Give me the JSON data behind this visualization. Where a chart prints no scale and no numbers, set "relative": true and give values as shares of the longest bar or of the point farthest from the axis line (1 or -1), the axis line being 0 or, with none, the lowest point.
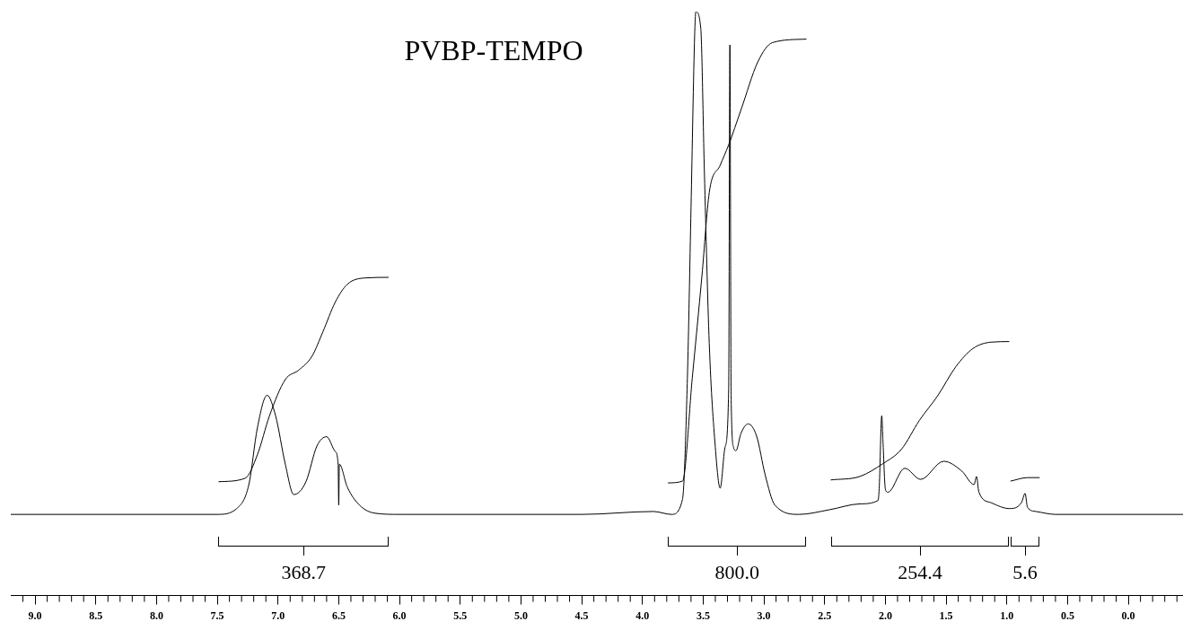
{
  "chart_data": {
    "type": "line",
    "title": "PVBP-TEMPO",
    "relative": true,
    "marker": "none",
    "legend": false,
    "xlim": [
      9.2,
      -0.45
    ],
    "xticks": [
      {
        "value": 9.1,
        "label": null
      },
      {
        "value": 9,
        "label": "9.0"
      },
      {
        "value": 8.9,
        "label": null
      },
      {
        "value": 8.8,
        "label": null
      },
      {
        "value": 8.7,
        "label": null
      },
      {
        "value": 8.6,
        "label": null
      },
      {
        "value": 8.5,
        "label": "8.5"
      },
      {
        "value": 8.4,
        "label": null
      },
      {
        "value": 8.3,
        "label": null
      },
      {
        "value": 8.2,
        "label": null
      },
      {
        "value": 8.1,
        "label": null
      },
      {
        "value": 8,
        "label": "8.0"
      },
      {
        "value": 7.9,
        "label": null
      },
      {
        "value": 7.8,
        "label": null
      },
      {
        "value": 7.7,
        "label": null
      },
      {
        "value": 7.6,
        "label": null
      },
      {
        "value": 7.5,
        "label": "7.5"
      },
      {
        "value": 7.4,
        "label": null
      },
      {
        "value": 7.3,
        "label": null
      },
      {
        "value": 7.2,
        "label": null
      },
      {
        "value": 7.1,
        "label": null
      },
      {
        "value": 7,
        "label": "7.0"
      },
      {
        "value": 6.9,
        "label": null
      },
      {
        "value": 6.8,
        "label": null
      },
      {
        "value": 6.7,
        "label": null
      },
      {
        "value": 6.6,
        "label": null
      },
      {
        "value": 6.5,
        "label": "6.5"
      },
      {
        "value": 6.4,
        "label": null
      },
      {
        "value": 6.3,
        "label": null
      },
      {
        "value": 6.2,
        "label": null
      },
      {
        "value": 6.1,
        "label": null
      },
      {
        "value": 6,
        "label": "6.0"
      },
      {
        "value": 5.9,
        "label": null
      },
      {
        "value": 5.8,
        "label": null
      },
      {
        "value": 5.7,
        "label": null
      },
      {
        "value": 5.6,
        "label": null
      },
      {
        "value": 5.5,
        "label": "5.5"
      },
      {
        "value": 5.4,
        "label": null
      },
      {
        "value": 5.3,
        "label": null
      },
      {
        "value": 5.2,
        "label": null
      },
      {
        "value": 5.1,
        "label": null
      },
      {
        "value": 5,
        "label": "5.0"
      },
      {
        "value": 4.9,
        "label": null
      },
      {
        "value": 4.8,
        "label": null
      },
      {
        "value": 4.7,
        "label": null
      },
      {
        "value": 4.6,
        "label": null
      },
      {
        "value": 4.5,
        "label": "4.5"
      },
      {
        "value": 4.4,
        "label": null
      },
      {
        "value": 4.3,
        "label": null
      },
      {
        "value": 4.2,
        "label": null
      },
      {
        "value": 4.1,
        "label": null
      },
      {
        "value": 4,
        "label": "4.0"
      },
      {
        "value": 3.9,
        "label": null
      },
      {
        "value": 3.8,
        "label": null
      },
      {
        "value": 3.7,
        "label": null
      },
      {
        "value": 3.6,
        "label": null
      },
      {
        "value": 3.5,
        "label": "3.5"
      },
      {
        "value": 3.4,
        "label": null
      },
      {
        "value": 3.3,
        "label": null
      },
      {
        "value": 3.2,
        "label": null
      },
      {
        "value": 3.1,
        "label": null
      },
      {
        "value": 3,
        "label": "3.0"
      },
      {
        "value": 2.9,
        "label": null
      },
      {
        "value": 2.8,
        "label": null
      },
      {
        "value": 2.7,
        "label": null
      },
      {
        "value": 2.6,
        "label": null
      },
      {
        "value": 2.5,
        "label": "2.5"
      },
      {
        "value": 2.4,
        "label": null
      },
      {
        "value": 2.3,
        "label": null
      },
      {
        "value": 2.2,
        "label": null
      },
      {
        "value": 2.1,
        "label": null
      },
      {
        "value": 2,
        "label": "2.0"
      },
      {
        "value": 1.9,
        "label": null
      },
      {
        "value": 1.8,
        "label": null
      },
      {
        "value": 1.7,
        "label": null
      },
      {
        "value": 1.6,
        "label": null
      },
      {
        "value": 1.5,
        "label": "1.5"
      },
      {
        "value": 1.4,
        "label": null
      },
      {
        "value": 1.3,
        "label": null
      },
      {
        "value": 1.2,
        "label": null
      },
      {
        "value": 1.1,
        "label": null
      },
      {
        "value": 1,
        "label": "1.0"
      },
      {
        "value": 0.9,
        "label": null
      },
      {
        "value": 0.8,
        "label": null
      },
      {
        "value": 0.7,
        "label": null
      },
      {
        "value": 0.6,
        "label": null
      },
      {
        "value": 0.5,
        "label": "0.5"
      },
      {
        "value": 0.4,
        "label": null
      },
      {
        "value": 0.3,
        "label": null
      },
      {
        "value": 0.2,
        "label": null
      },
      {
        "value": 0.1,
        "label": null
      },
      {
        "value": 0,
        "label": "0.0"
      },
      {
        "value": -0.1,
        "label": null
      },
      {
        "value": -0.2,
        "label": null
      },
      {
        "value": -0.3,
        "label": null
      },
      {
        "value": -0.4,
        "label": null
      }
    ],
    "series": [
      {
        "color": "#000000",
        "x": [
          9.2,
          7.5,
          7.34,
          7.24,
          7.17,
          7.09,
          7.02,
          6.94,
          6.87,
          6.77,
          6.68,
          6.6,
          6.53,
          6.505,
          6.5,
          6.495,
          6.43,
          6.33,
          6.2,
          6.0,
          4.5,
          3.91,
          3.76,
          3.67,
          3.63,
          3.6,
          3.57,
          3.56,
          3.52,
          3.49,
          3.45,
          3.4,
          3.36,
          3.32,
          3.29,
          3.28,
          3.27,
          3.25,
          3.23,
          3.19,
          3.13,
          3.06,
          2.99,
          2.91,
          2.71,
          2.46,
          2.21,
          2.06,
          2.05,
          2.03,
          2.02,
          2.0,
          1.98,
          1.84,
          1.71,
          1.52,
          1.37,
          1.27,
          1.25,
          1.23,
          1.13,
          0.98,
          0.88,
          0.85,
          0.83,
          0.76,
          0.6,
          -0.45
        ],
        "values": [
          0.139,
          0.139,
          0.149,
          0.19,
          0.287,
          0.343,
          0.308,
          0.225,
          0.173,
          0.195,
          0.256,
          0.272,
          0.247,
          0.225,
          0.155,
          0.225,
          0.186,
          0.155,
          0.141,
          0.139,
          0.139,
          0.144,
          0.139,
          0.165,
          0.372,
          0.664,
          0.961,
          1,
          0.972,
          0.725,
          0.432,
          0.254,
          0.184,
          0.254,
          0.354,
          0.943,
          0.343,
          0.254,
          0.248,
          0.277,
          0.294,
          0.273,
          0.207,
          0.155,
          0.139,
          0.147,
          0.157,
          0.163,
          0.188,
          0.308,
          0.265,
          0.182,
          0.177,
          0.218,
          0.199,
          0.23,
          0.213,
          0.19,
          0.204,
          0.177,
          0.159,
          0.149,
          0.159,
          0.175,
          0.151,
          0.144,
          0.139,
          0.139
        ]
      },
      {
        "color": "#000000",
        "x": [
          7.49,
          7.27,
          7.17,
          7.07,
          6.94,
          6.83,
          6.72,
          6.63,
          6.53,
          6.43,
          6.28,
          6.09
        ],
        "values": [
          0.195,
          0.201,
          0.241,
          0.308,
          0.37,
          0.386,
          0.41,
          0.452,
          0.502,
          0.533,
          0.544,
          0.545
        ]
      },
      {
        "color": "#000000",
        "x": [
          3.79,
          3.67,
          3.59,
          3.51,
          3.45,
          3.36,
          3.29,
          3.19,
          3.05,
          2.93,
          2.65
        ],
        "values": [
          0.193,
          0.196,
          0.372,
          0.548,
          0.69,
          0.737,
          0.772,
          0.831,
          0.914,
          0.947,
          0.953
        ]
      },
      {
        "color": "#000000",
        "x": [
          2.45,
          2.21,
          2.02,
          1.87,
          1.72,
          1.57,
          1.42,
          1.28,
          1.13,
          0.98
        ],
        "values": [
          0.198,
          0.204,
          0.226,
          0.25,
          0.3,
          0.342,
          0.392,
          0.423,
          0.434,
          0.435
        ]
      },
      {
        "color": "#000000",
        "x": [
          0.97,
          0.83,
          0.73
        ],
        "values": [
          0.196,
          0.202,
          0.202
        ]
      }
    ],
    "annotations": [
      "368.7",
      "800.0",
      "254.4",
      "5.6"
    ]
  }
}
